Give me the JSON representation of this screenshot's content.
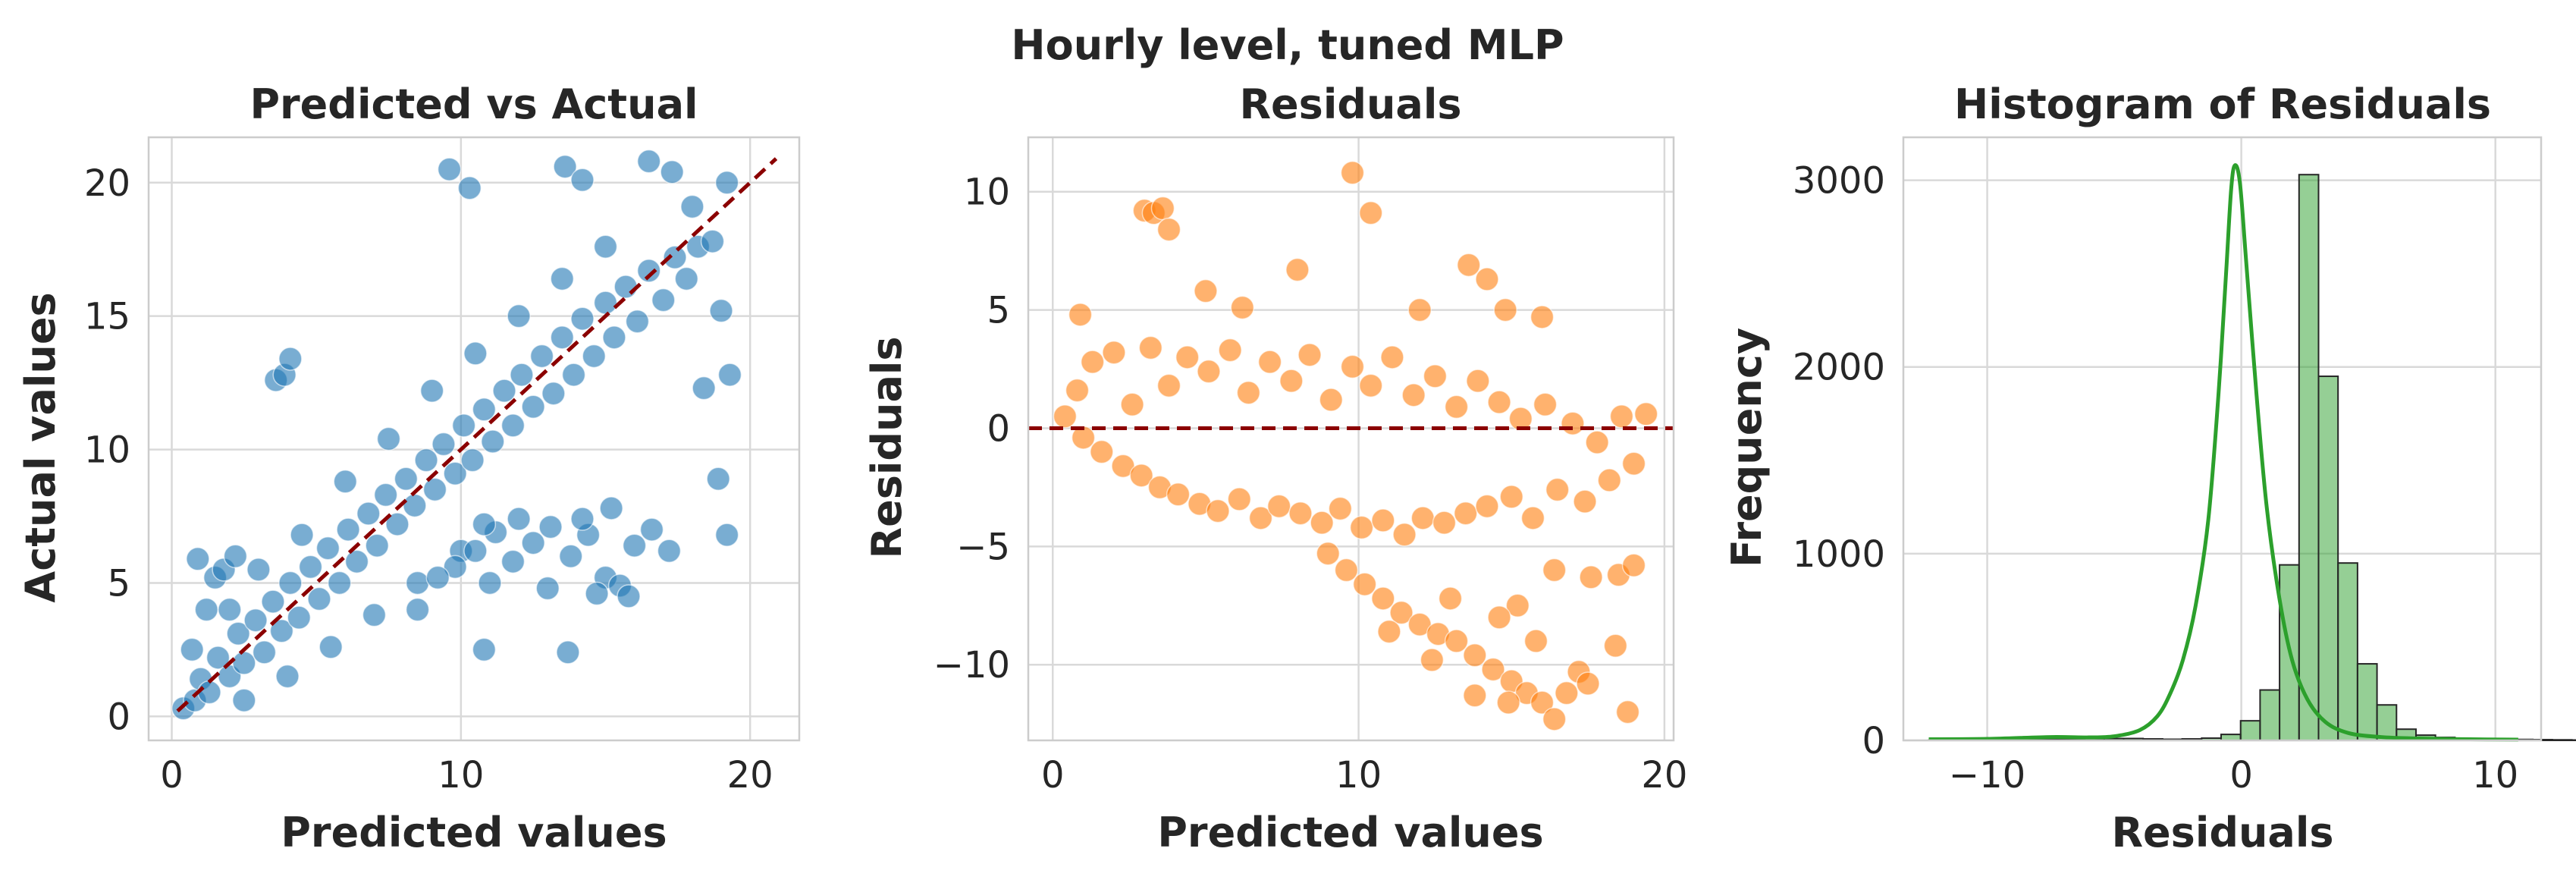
{
  "figure": {
    "suptitle": "Hourly level, tuned MLP",
    "colors": {
      "blue": "#1f77b4",
      "orange": "#ff7f0e",
      "green": "#2ca02c",
      "ref_line": "#8b0000",
      "grid": "#d9d9d9",
      "bar_edge": "#262626"
    }
  },
  "chart_data": [
    {
      "type": "scatter",
      "title": "Predicted vs Actual",
      "xlabel": "Predicted values",
      "ylabel": "Actual values",
      "xlim": [
        -0.8,
        21.7
      ],
      "ylim": [
        -0.9,
        21.7
      ],
      "xticks": [
        0,
        10,
        20
      ],
      "xtick_labels": [
        "0",
        "10",
        "20"
      ],
      "yticks": [
        0,
        5,
        10,
        15,
        20
      ],
      "ytick_labels": [
        "0",
        "5",
        "10",
        "15",
        "20"
      ],
      "grid": true,
      "reference_line": {
        "style": "dashed",
        "color": "#8b0000",
        "from": [
          0.2,
          0.2
        ],
        "to": [
          20.9,
          20.9
        ]
      },
      "series": [
        {
          "color": "#1f77b4",
          "points": [
            [
              0.4,
              0.3
            ],
            [
              0.8,
              0.6
            ],
            [
              1.0,
              1.4
            ],
            [
              1.3,
              0.9
            ],
            [
              1.6,
              2.2
            ],
            [
              2.0,
              1.5
            ],
            [
              2.3,
              3.1
            ],
            [
              2.5,
              2.0
            ],
            [
              2.9,
              3.6
            ],
            [
              3.2,
              2.4
            ],
            [
              3.5,
              4.3
            ],
            [
              3.8,
              3.2
            ],
            [
              4.1,
              5.0
            ],
            [
              4.4,
              3.7
            ],
            [
              4.8,
              5.6
            ],
            [
              5.1,
              4.4
            ],
            [
              5.4,
              6.3
            ],
            [
              5.8,
              5.0
            ],
            [
              6.1,
              7.0
            ],
            [
              6.4,
              5.8
            ],
            [
              6.8,
              7.6
            ],
            [
              7.1,
              6.4
            ],
            [
              7.4,
              8.3
            ],
            [
              7.8,
              7.2
            ],
            [
              8.1,
              8.9
            ],
            [
              8.4,
              7.9
            ],
            [
              8.8,
              9.6
            ],
            [
              9.1,
              8.5
            ],
            [
              9.4,
              10.2
            ],
            [
              9.8,
              9.1
            ],
            [
              10.1,
              10.9
            ],
            [
              10.4,
              9.6
            ],
            [
              10.8,
              11.5
            ],
            [
              11.1,
              10.3
            ],
            [
              11.5,
              12.2
            ],
            [
              11.8,
              10.9
            ],
            [
              12.1,
              12.8
            ],
            [
              12.5,
              11.6
            ],
            [
              12.8,
              13.5
            ],
            [
              13.2,
              12.1
            ],
            [
              13.5,
              14.2
            ],
            [
              13.9,
              12.8
            ],
            [
              14.2,
              14.9
            ],
            [
              14.6,
              13.5
            ],
            [
              15.0,
              15.5
            ],
            [
              15.3,
              14.2
            ],
            [
              15.7,
              16.1
            ],
            [
              16.1,
              14.8
            ],
            [
              16.5,
              16.7
            ],
            [
              17.0,
              15.6
            ],
            [
              17.4,
              17.2
            ],
            [
              17.8,
              16.4
            ],
            [
              18.2,
              17.6
            ],
            [
              2.0,
              4.0
            ],
            [
              3.0,
              5.5
            ],
            [
              4.5,
              6.8
            ],
            [
              6.0,
              8.8
            ],
            [
              7.5,
              10.4
            ],
            [
              9.0,
              12.2
            ],
            [
              10.5,
              13.6
            ],
            [
              12.0,
              15.0
            ],
            [
              13.5,
              16.4
            ],
            [
              15.0,
              17.6
            ],
            [
              2.5,
              0.6
            ],
            [
              4.0,
              1.5
            ],
            [
              5.5,
              2.6
            ],
            [
              7.0,
              3.8
            ],
            [
              8.5,
              5.0
            ],
            [
              10.0,
              6.2
            ],
            [
              0.7,
              2.5
            ],
            [
              1.2,
              4.0
            ],
            [
              1.5,
              5.2
            ],
            [
              0.9,
              5.9
            ],
            [
              1.8,
              5.5
            ],
            [
              2.2,
              6.0
            ],
            [
              3.6,
              12.6
            ],
            [
              3.9,
              12.8
            ],
            [
              4.1,
              13.4
            ],
            [
              9.6,
              20.5
            ],
            [
              10.3,
              19.8
            ],
            [
              13.6,
              20.6
            ],
            [
              14.2,
              20.1
            ],
            [
              16.5,
              20.8
            ],
            [
              17.3,
              20.4
            ],
            [
              19.2,
              20.0
            ],
            [
              18.0,
              19.1
            ],
            [
              18.7,
              17.8
            ],
            [
              19.0,
              15.2
            ],
            [
              18.4,
              12.3
            ],
            [
              18.9,
              8.9
            ],
            [
              19.2,
              6.8
            ],
            [
              19.3,
              12.8
            ],
            [
              9.8,
              5.6
            ],
            [
              10.5,
              6.2
            ],
            [
              11.2,
              6.9
            ],
            [
              11.8,
              5.8
            ],
            [
              12.5,
              6.5
            ],
            [
              13.1,
              7.1
            ],
            [
              13.8,
              6.0
            ],
            [
              14.4,
              6.8
            ],
            [
              15.0,
              5.2
            ],
            [
              15.5,
              4.9
            ],
            [
              16.0,
              6.4
            ],
            [
              16.6,
              7.0
            ],
            [
              17.2,
              6.2
            ],
            [
              14.7,
              4.6
            ],
            [
              15.8,
              4.5
            ],
            [
              13.0,
              4.8
            ],
            [
              11.0,
              5.0
            ],
            [
              10.8,
              7.2
            ],
            [
              12.0,
              7.4
            ],
            [
              13.7,
              2.4
            ],
            [
              10.8,
              2.5
            ],
            [
              8.5,
              4.0
            ],
            [
              9.2,
              5.2
            ],
            [
              14.2,
              7.4
            ],
            [
              15.2,
              7.8
            ]
          ]
        }
      ]
    },
    {
      "type": "scatter",
      "title": "Residuals",
      "xlabel": "Predicted values",
      "ylabel": "Residuals",
      "xlim": [
        -0.8,
        20.3
      ],
      "ylim": [
        -13.2,
        12.3
      ],
      "xticks": [
        0,
        10,
        20
      ],
      "xtick_labels": [
        "0",
        "10",
        "20"
      ],
      "yticks": [
        -10,
        -5,
        0,
        5,
        10
      ],
      "ytick_labels": [
        "−10",
        "−5",
        "0",
        "5",
        "10"
      ],
      "grid": true,
      "reference_line": {
        "style": "dashed",
        "color": "#8b0000",
        "y": 0
      },
      "series": [
        {
          "color": "#ff7f0e",
          "points": [
            [
              0.4,
              0.5
            ],
            [
              0.8,
              1.6
            ],
            [
              1.0,
              -0.4
            ],
            [
              1.3,
              2.8
            ],
            [
              1.6,
              -1.0
            ],
            [
              2.0,
              3.2
            ],
            [
              2.3,
              -1.6
            ],
            [
              2.6,
              1.0
            ],
            [
              2.9,
              -2.0
            ],
            [
              3.2,
              3.4
            ],
            [
              3.5,
              -2.5
            ],
            [
              3.8,
              1.8
            ],
            [
              4.1,
              -2.8
            ],
            [
              4.4,
              3.0
            ],
            [
              4.8,
              -3.2
            ],
            [
              5.1,
              2.4
            ],
            [
              5.4,
              -3.5
            ],
            [
              5.8,
              3.3
            ],
            [
              6.1,
              -3.0
            ],
            [
              6.4,
              1.5
            ],
            [
              6.8,
              -3.8
            ],
            [
              7.1,
              2.8
            ],
            [
              7.4,
              -3.3
            ],
            [
              7.8,
              2.0
            ],
            [
              8.1,
              -3.6
            ],
            [
              8.4,
              3.1
            ],
            [
              8.8,
              -4.0
            ],
            [
              9.1,
              1.2
            ],
            [
              9.4,
              -3.4
            ],
            [
              9.8,
              2.6
            ],
            [
              10.1,
              -4.2
            ],
            [
              10.4,
              1.8
            ],
            [
              10.8,
              -3.9
            ],
            [
              11.1,
              3.0
            ],
            [
              11.5,
              -4.5
            ],
            [
              11.8,
              1.4
            ],
            [
              12.1,
              -3.8
            ],
            [
              12.5,
              2.2
            ],
            [
              12.8,
              -4.0
            ],
            [
              13.2,
              0.9
            ],
            [
              13.5,
              -3.6
            ],
            [
              13.9,
              2.0
            ],
            [
              14.2,
              -3.3
            ],
            [
              14.6,
              1.1
            ],
            [
              15.0,
              -2.9
            ],
            [
              15.3,
              0.4
            ],
            [
              15.7,
              -3.8
            ],
            [
              16.1,
              1.0
            ],
            [
              16.5,
              -2.6
            ],
            [
              17.0,
              0.2
            ],
            [
              17.4,
              -3.1
            ],
            [
              17.8,
              -0.6
            ],
            [
              18.2,
              -2.2
            ],
            [
              18.6,
              0.5
            ],
            [
              19.0,
              -1.5
            ],
            [
              19.4,
              0.6
            ],
            [
              3.0,
              9.2
            ],
            [
              3.3,
              9.1
            ],
            [
              3.6,
              9.3
            ],
            [
              3.8,
              8.4
            ],
            [
              8.0,
              6.7
            ],
            [
              9.8,
              10.8
            ],
            [
              10.4,
              9.1
            ],
            [
              13.6,
              6.9
            ],
            [
              14.2,
              6.3
            ],
            [
              14.8,
              5.0
            ],
            [
              16.0,
              4.7
            ],
            [
              12.0,
              5.0
            ],
            [
              5.0,
              5.8
            ],
            [
              6.2,
              5.1
            ],
            [
              0.9,
              4.8
            ],
            [
              9.0,
              -5.3
            ],
            [
              9.6,
              -6.0
            ],
            [
              10.2,
              -6.6
            ],
            [
              10.8,
              -7.2
            ],
            [
              11.4,
              -7.8
            ],
            [
              12.0,
              -8.3
            ],
            [
              12.6,
              -8.7
            ],
            [
              13.2,
              -9.0
            ],
            [
              13.8,
              -9.6
            ],
            [
              14.4,
              -10.2
            ],
            [
              15.0,
              -10.7
            ],
            [
              15.5,
              -11.2
            ],
            [
              16.0,
              -11.6
            ],
            [
              16.4,
              -12.3
            ],
            [
              16.8,
              -11.2
            ],
            [
              15.2,
              -7.5
            ],
            [
              14.6,
              -8.0
            ],
            [
              13.0,
              -7.2
            ],
            [
              11.0,
              -8.6
            ],
            [
              17.2,
              -10.3
            ],
            [
              17.5,
              -10.8
            ],
            [
              18.4,
              -9.2
            ],
            [
              18.8,
              -12.0
            ],
            [
              17.6,
              -6.3
            ],
            [
              16.4,
              -6.0
            ],
            [
              18.5,
              -6.2
            ],
            [
              19.0,
              -5.8
            ],
            [
              13.8,
              -11.3
            ],
            [
              14.9,
              -11.6
            ],
            [
              15.8,
              -9.0
            ],
            [
              12.4,
              -9.8
            ]
          ]
        }
      ]
    },
    {
      "type": "bar",
      "title": "Histogram of Residuals",
      "xlabel": "Residuals",
      "ylabel": "Frequency",
      "xlim": [
        -13.3,
        11.8
      ],
      "ylim": [
        0,
        3230
      ],
      "xticks": [
        -10,
        0,
        10
      ],
      "xtick_labels": [
        "−10",
        "0",
        "10"
      ],
      "yticks": [
        0,
        1000,
        2000,
        3000
      ],
      "ytick_labels": [
        "0",
        "1000",
        "2000",
        "3000"
      ],
      "grid": true,
      "bin_width": 0.767,
      "bins_start": -12.3,
      "bin_counts": [
        2,
        3,
        4,
        5,
        6,
        7,
        7,
        8,
        9,
        10,
        10,
        8,
        6,
        8,
        12,
        32,
        105,
        270,
        940,
        3030,
        1950,
        950,
        410,
        190,
        60,
        28,
        16,
        10,
        6,
        5,
        5,
        4,
        3,
        2
      ],
      "kde_points": [
        [
          -12.3,
          6
        ],
        [
          -10.0,
          8
        ],
        [
          -7.5,
          18
        ],
        [
          -6.0,
          16
        ],
        [
          -5.0,
          22
        ],
        [
          -4.0,
          55
        ],
        [
          -3.3,
          130
        ],
        [
          -2.8,
          250
        ],
        [
          -2.3,
          430
        ],
        [
          -1.8,
          720
        ],
        [
          -1.3,
          1180
        ],
        [
          -0.9,
          1850
        ],
        [
          -0.6,
          2500
        ],
        [
          -0.4,
          2950
        ],
        [
          -0.25,
          3080
        ],
        [
          -0.05,
          2980
        ],
        [
          0.2,
          2550
        ],
        [
          0.6,
          1850
        ],
        [
          1.0,
          1250
        ],
        [
          1.5,
          760
        ],
        [
          2.0,
          430
        ],
        [
          2.6,
          220
        ],
        [
          3.3,
          100
        ],
        [
          4.2,
          40
        ],
        [
          5.5,
          18
        ],
        [
          7.0,
          10
        ],
        [
          9.0,
          6
        ],
        [
          10.9,
          4
        ]
      ],
      "series": [
        {
          "color": "#2ca02c"
        }
      ]
    }
  ]
}
